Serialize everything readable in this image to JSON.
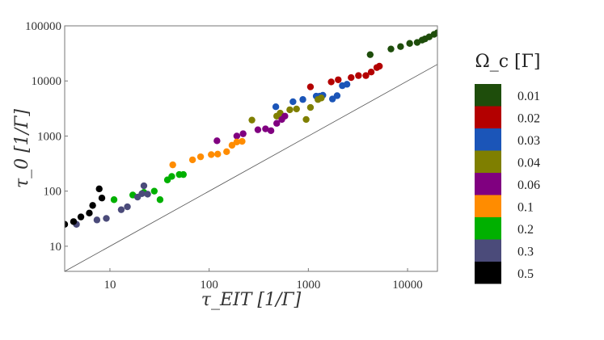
{
  "chart_data": {
    "type": "scatter",
    "title": "",
    "xlabel": "τ_EIT [1/Γ]",
    "ylabel": "τ_0 [1/Γ]",
    "xscale": "log",
    "yscale": "log",
    "xlim": [
      3.5,
      20000
    ],
    "ylim": [
      3.5,
      100000
    ],
    "x_ticks": [
      10,
      100,
      1000,
      10000
    ],
    "x_tick_labels": [
      "10",
      "100",
      "1000",
      "10000"
    ],
    "y_ticks": [
      10,
      100,
      1000,
      10000,
      100000
    ],
    "y_tick_labels": [
      "10",
      "100",
      "1000",
      "10000",
      "100000"
    ],
    "grid": false,
    "legend": {
      "title": "Ω_c [Γ]",
      "placement": "right",
      "style": "color-bar"
    },
    "reference_line": {
      "label": "",
      "x": [
        3.5,
        20000
      ],
      "y": [
        3.5,
        20000
      ],
      "color": "#555555"
    },
    "series": [
      {
        "name": "0.01",
        "color": "#1e4d0b",
        "points": [
          [
            4200,
            30000
          ],
          [
            6800,
            38000
          ],
          [
            8500,
            42000
          ],
          [
            10500,
            48000
          ],
          [
            12500,
            50000
          ],
          [
            14000,
            55000
          ],
          [
            15000,
            58000
          ],
          [
            16500,
            63000
          ],
          [
            18500,
            70000
          ],
          [
            20000,
            75000
          ]
        ]
      },
      {
        "name": "0.02",
        "color": "#b30000",
        "points": [
          [
            1050,
            7800
          ],
          [
            1700,
            9600
          ],
          [
            2000,
            10500
          ],
          [
            2700,
            11500
          ],
          [
            3200,
            12500
          ],
          [
            3800,
            12500
          ],
          [
            4300,
            14500
          ],
          [
            4900,
            17500
          ],
          [
            5200,
            18500
          ]
        ]
      },
      {
        "name": "0.03",
        "color": "#1b55b8",
        "points": [
          [
            470,
            3400
          ],
          [
            700,
            4200
          ],
          [
            880,
            4600
          ],
          [
            1200,
            5300
          ],
          [
            1300,
            5300
          ],
          [
            1400,
            5500
          ],
          [
            1750,
            4700
          ],
          [
            1950,
            5400
          ],
          [
            2200,
            8200
          ],
          [
            2450,
            8700
          ]
        ]
      },
      {
        "name": "0.04",
        "color": "#7f7f00",
        "points": [
          [
            270,
            1950
          ],
          [
            480,
            2300
          ],
          [
            520,
            2600
          ],
          [
            650,
            3000
          ],
          [
            760,
            3100
          ],
          [
            950,
            2000
          ],
          [
            1050,
            3300
          ],
          [
            1250,
            4600
          ],
          [
            1350,
            4900
          ]
        ]
      },
      {
        "name": "0.06",
        "color": "#800080",
        "points": [
          [
            120,
            820
          ],
          [
            190,
            1000
          ],
          [
            220,
            1100
          ],
          [
            310,
            1300
          ],
          [
            370,
            1350
          ],
          [
            420,
            1250
          ],
          [
            480,
            1700
          ],
          [
            540,
            2000
          ],
          [
            580,
            2300
          ]
        ]
      },
      {
        "name": "0.1",
        "color": "#ff8c00",
        "points": [
          [
            43,
            300
          ],
          [
            68,
            370
          ],
          [
            82,
            420
          ],
          [
            105,
            460
          ],
          [
            122,
            470
          ],
          [
            150,
            520
          ],
          [
            170,
            680
          ],
          [
            190,
            780
          ],
          [
            215,
            800
          ]
        ]
      },
      {
        "name": "0.2",
        "color": "#00b000",
        "points": [
          [
            11,
            70
          ],
          [
            17,
            85
          ],
          [
            22,
            95
          ],
          [
            28,
            100
          ],
          [
            32,
            70
          ],
          [
            38,
            160
          ],
          [
            42,
            185
          ],
          [
            50,
            200
          ],
          [
            55,
            200
          ]
        ]
      },
      {
        "name": "0.3",
        "color": "#4b4b7a",
        "points": [
          [
            4.6,
            25
          ],
          [
            7.4,
            30
          ],
          [
            9.2,
            32
          ],
          [
            13,
            46
          ],
          [
            15,
            52
          ],
          [
            19,
            78
          ],
          [
            21,
            90
          ],
          [
            22,
            125
          ],
          [
            24,
            88
          ]
        ]
      },
      {
        "name": "0.5",
        "color": "#000000",
        "points": [
          [
            3.5,
            25
          ],
          [
            4.3,
            28
          ],
          [
            5.1,
            34
          ],
          [
            6.2,
            40
          ],
          [
            6.7,
            55
          ],
          [
            7.8,
            110
          ],
          [
            8.3,
            75
          ]
        ]
      }
    ]
  }
}
